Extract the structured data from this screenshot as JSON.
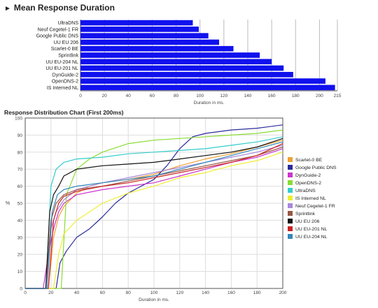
{
  "header": {
    "title": "Mean Response Duration",
    "subtitle": "Response Distribution Chart (First 200ms)"
  },
  "colors": {
    "bar": "#1111ee",
    "grid": "#bbbbbb",
    "axis": "#555555"
  },
  "chart_data": [
    {
      "type": "bar",
      "orientation": "horizontal",
      "title": "Mean Response Duration",
      "xlabel": "Duration in ms.",
      "ylabel": "",
      "xlim": [
        0,
        215
      ],
      "x_ticks": [
        0,
        20,
        40,
        60,
        80,
        100,
        120,
        140,
        160,
        180,
        200,
        215
      ],
      "categories": [
        "UltraDNS",
        "Neuf Cegetel-1 FR",
        "Google Public DNS",
        "UU EU 206",
        "Scarlet-0 BE",
        "Sprintlink",
        "UU EU-204 NL",
        "UU EU-201 NL",
        "DynGuide-2",
        "OpenDNS-2",
        "IS Interned NL"
      ],
      "values": [
        94,
        99,
        107,
        116,
        128,
        150,
        160,
        170,
        178,
        205,
        213
      ],
      "grid": true
    },
    {
      "type": "line",
      "title": "Response Distribution Chart (First 200ms)",
      "xlabel": "Duration in ms.",
      "ylabel": "%",
      "xlim": [
        0,
        200
      ],
      "ylim": [
        0,
        100
      ],
      "x_ticks": [
        0,
        20,
        40,
        60,
        80,
        100,
        120,
        140,
        160,
        180,
        200
      ],
      "y_ticks": [
        0,
        10,
        20,
        30,
        40,
        50,
        60,
        70,
        80,
        90,
        100
      ],
      "grid": true,
      "legend_position": "right",
      "series": [
        {
          "name": "Scarlet-0 BE",
          "color": "#f0a030",
          "points": [
            [
              0,
              0
            ],
            [
              18,
              0
            ],
            [
              22,
              30
            ],
            [
              26,
              42
            ],
            [
              30,
              48
            ],
            [
              40,
              56
            ],
            [
              50,
              60
            ],
            [
              60,
              62
            ],
            [
              80,
              64
            ],
            [
              100,
              67
            ],
            [
              120,
              72
            ],
            [
              140,
              76
            ],
            [
              160,
              79
            ],
            [
              180,
              83
            ],
            [
              200,
              87
            ]
          ]
        },
        {
          "name": "Google Public DNS",
          "color": "#2a2a9a",
          "points": [
            [
              0,
              0
            ],
            [
              24,
              0
            ],
            [
              27,
              15
            ],
            [
              32,
              22
            ],
            [
              40,
              30
            ],
            [
              50,
              35
            ],
            [
              60,
              42
            ],
            [
              70,
              50
            ],
            [
              80,
              56
            ],
            [
              90,
              60
            ],
            [
              100,
              64
            ],
            [
              110,
              72
            ],
            [
              120,
              82
            ],
            [
              130,
              89
            ],
            [
              140,
              91
            ],
            [
              160,
              93
            ],
            [
              180,
              94
            ],
            [
              200,
              96
            ]
          ]
        },
        {
          "name": "DynGuide-2",
          "color": "#cc33cc",
          "points": [
            [
              0,
              0
            ],
            [
              14,
              0
            ],
            [
              18,
              20
            ],
            [
              22,
              35
            ],
            [
              26,
              45
            ],
            [
              30,
              50
            ],
            [
              40,
              55
            ],
            [
              60,
              58
            ],
            [
              80,
              60
            ],
            [
              100,
              62
            ],
            [
              120,
              66
            ],
            [
              140,
              70
            ],
            [
              160,
              74
            ],
            [
              180,
              77
            ],
            [
              200,
              82
            ]
          ]
        },
        {
          "name": "OpenDNS-2",
          "color": "#88dd33",
          "points": [
            [
              0,
              0
            ],
            [
              28,
              0
            ],
            [
              32,
              55
            ],
            [
              40,
              70
            ],
            [
              50,
              76
            ],
            [
              60,
              80
            ],
            [
              80,
              85
            ],
            [
              100,
              87
            ],
            [
              120,
              88
            ],
            [
              140,
              89
            ],
            [
              160,
              90
            ],
            [
              180,
              91
            ],
            [
              200,
              93
            ]
          ]
        },
        {
          "name": "UltraDNS",
          "color": "#33cccc",
          "points": [
            [
              0,
              0
            ],
            [
              16,
              0
            ],
            [
              20,
              60
            ],
            [
              24,
              70
            ],
            [
              30,
              74
            ],
            [
              40,
              76
            ],
            [
              60,
              77
            ],
            [
              80,
              79
            ],
            [
              100,
              80
            ],
            [
              120,
              81
            ],
            [
              140,
              82
            ],
            [
              160,
              84
            ],
            [
              180,
              86
            ],
            [
              200,
              89
            ]
          ]
        },
        {
          "name": "IS Interned NL",
          "color": "#eeee33",
          "points": [
            [
              0,
              0
            ],
            [
              22,
              0
            ],
            [
              26,
              20
            ],
            [
              30,
              32
            ],
            [
              40,
              40
            ],
            [
              50,
              45
            ],
            [
              60,
              50
            ],
            [
              80,
              56
            ],
            [
              100,
              60
            ],
            [
              120,
              65
            ],
            [
              140,
              68
            ],
            [
              160,
              72
            ],
            [
              180,
              75
            ],
            [
              200,
              80
            ]
          ]
        },
        {
          "name": "Neuf Cegetel-1 FR",
          "color": "#aa88dd",
          "points": [
            [
              0,
              0
            ],
            [
              16,
              0
            ],
            [
              20,
              35
            ],
            [
              24,
              45
            ],
            [
              30,
              52
            ],
            [
              40,
              58
            ],
            [
              60,
              62
            ],
            [
              80,
              65
            ],
            [
              100,
              68
            ],
            [
              120,
              71
            ],
            [
              140,
              74
            ],
            [
              160,
              77
            ],
            [
              180,
              80
            ],
            [
              200,
              84
            ]
          ]
        },
        {
          "name": "Sprintlink",
          "color": "#995544",
          "points": [
            [
              0,
              0
            ],
            [
              16,
              0
            ],
            [
              20,
              40
            ],
            [
              24,
              50
            ],
            [
              30,
              55
            ],
            [
              40,
              58
            ],
            [
              60,
              60
            ],
            [
              80,
              63
            ],
            [
              100,
              66
            ],
            [
              120,
              69
            ],
            [
              140,
              72
            ],
            [
              160,
              75
            ],
            [
              180,
              78
            ],
            [
              200,
              83
            ]
          ]
        },
        {
          "name": "UU EU 206",
          "color": "#111111",
          "points": [
            [
              0,
              0
            ],
            [
              16,
              0
            ],
            [
              19,
              45
            ],
            [
              22,
              55
            ],
            [
              26,
              60
            ],
            [
              30,
              66
            ],
            [
              40,
              70
            ],
            [
              60,
              72
            ],
            [
              80,
              73
            ],
            [
              100,
              74
            ],
            [
              120,
              76
            ],
            [
              140,
              78
            ],
            [
              160,
              80
            ],
            [
              180,
              83
            ],
            [
              200,
              88
            ]
          ]
        },
        {
          "name": "UU EU-201 NL",
          "color": "#cc2222",
          "points": [
            [
              0,
              0
            ],
            [
              18,
              0
            ],
            [
              22,
              40
            ],
            [
              26,
              50
            ],
            [
              30,
              54
            ],
            [
              40,
              57
            ],
            [
              60,
              60
            ],
            [
              80,
              62
            ],
            [
              100,
              65
            ],
            [
              120,
              68
            ],
            [
              140,
              71
            ],
            [
              160,
              74
            ],
            [
              180,
              78
            ],
            [
              200,
              85
            ]
          ]
        },
        {
          "name": "UU EU-204 NL",
          "color": "#3388bb",
          "points": [
            [
              0,
              0
            ],
            [
              17,
              0
            ],
            [
              21,
              45
            ],
            [
              25,
              55
            ],
            [
              30,
              58
            ],
            [
              40,
              60
            ],
            [
              60,
              62
            ],
            [
              80,
              64
            ],
            [
              100,
              66
            ],
            [
              120,
              70
            ],
            [
              140,
              74
            ],
            [
              160,
              78
            ],
            [
              180,
              82
            ],
            [
              200,
              86
            ]
          ]
        }
      ]
    }
  ]
}
